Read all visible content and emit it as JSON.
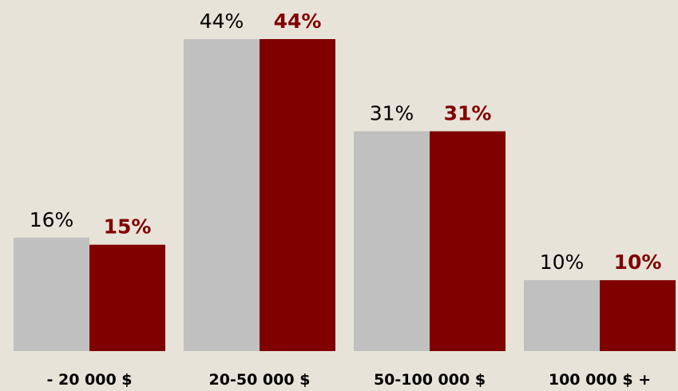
{
  "chart_data": {
    "type": "bar",
    "categories": [
      "- 20 000 $",
      "20-50 000 $",
      "50-100 000 $",
      "100 000 $ +"
    ],
    "series": [
      {
        "color": "#c0c0c0",
        "values": [
          16,
          44,
          31,
          10
        ],
        "value_labels": [
          "16%",
          "44%",
          "31%",
          "10%"
        ]
      },
      {
        "color": "#800000",
        "values": [
          15,
          44,
          31,
          10
        ],
        "value_labels": [
          "15%",
          "44%",
          "31%",
          "10%"
        ]
      }
    ]
  }
}
